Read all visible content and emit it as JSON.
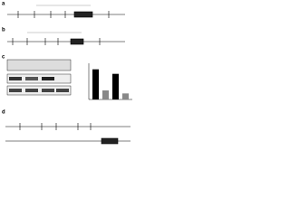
{
  "panels": [
    {
      "label": "a"
    },
    {
      "label": "b"
    },
    {
      "label": "c"
    },
    {
      "label": "d"
    }
  ],
  "bar_chart": {
    "values": [
      1,
      0.3,
      0.85,
      0.2
    ],
    "ylim": [
      0,
      1.2
    ]
  }
}
